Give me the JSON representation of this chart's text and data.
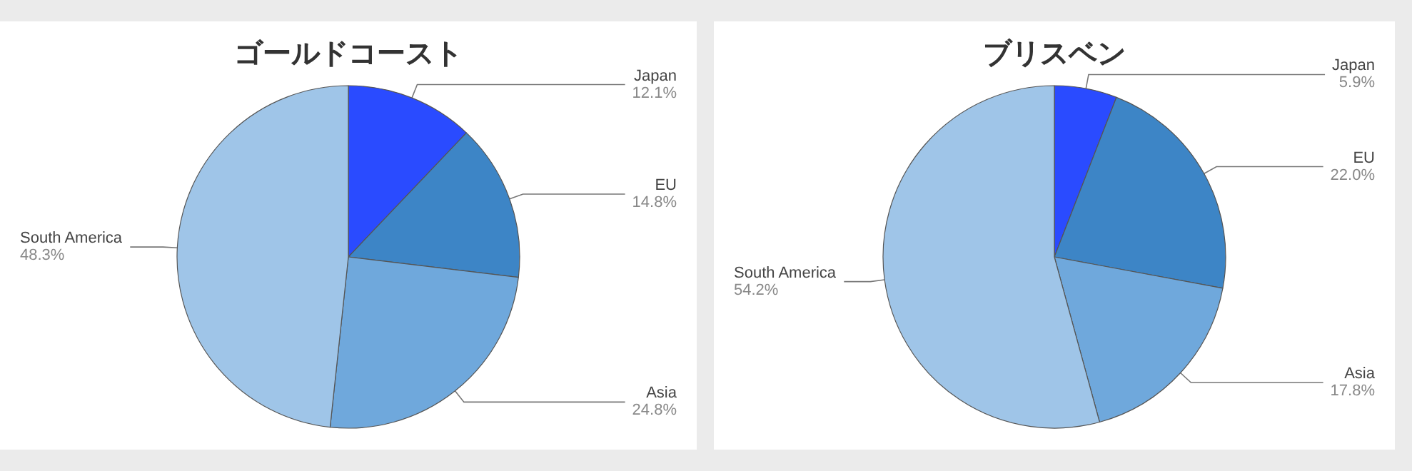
{
  "chart_data": [
    {
      "type": "pie",
      "title": "ゴールドコースト",
      "categories": [
        "Japan",
        "EU",
        "Asia",
        "South America"
      ],
      "values": [
        12.1,
        14.8,
        24.8,
        48.3
      ],
      "value_labels": [
        "12.1%",
        "14.8%",
        "24.8%",
        "48.3%"
      ],
      "colors": [
        "#2a4bff",
        "#3d85c6",
        "#6fa8dc",
        "#9fc5e8"
      ]
    },
    {
      "type": "pie",
      "title": "ブリスベン",
      "categories": [
        "Japan",
        "EU",
        "Asia",
        "South America"
      ],
      "values": [
        5.9,
        22.0,
        17.8,
        54.2
      ],
      "value_labels": [
        "5.9%",
        "22.0%",
        "17.8%",
        "54.2%"
      ],
      "colors": [
        "#2a4bff",
        "#3d85c6",
        "#6fa8dc",
        "#9fc5e8"
      ]
    }
  ]
}
